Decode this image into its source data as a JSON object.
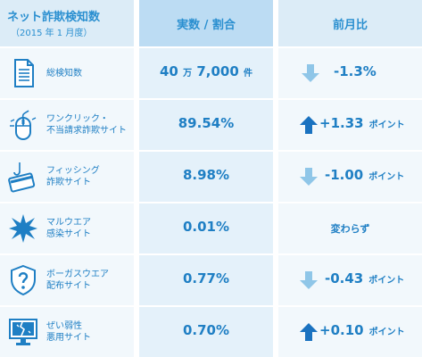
{
  "header": {
    "title": "ネット詐欺検知数",
    "subtitle": "（2015 年 1 月度）",
    "col2": "実数 / 割合",
    "col3": "前月比"
  },
  "rows": [
    {
      "label1": "総検知数",
      "label2": "",
      "value": "40",
      "value_unit1": "万",
      "value_num2": "7,000",
      "value_unit2": "件",
      "change": "-1.3%",
      "change_unit": "",
      "direction": "down",
      "icon": "document-icon"
    },
    {
      "label1": "ワンクリック・",
      "label2": "不当請求詐欺サイト",
      "value": "89.54%",
      "change": "+1.33",
      "change_unit": "ポイント",
      "direction": "up",
      "icon": "mouse-icon"
    },
    {
      "label1": "フィッシング",
      "label2": "詐欺サイト",
      "value": "8.98%",
      "change": "-1.00",
      "change_unit": "ポイント",
      "direction": "down",
      "icon": "credit-card-hook-icon"
    },
    {
      "label1": "マルウエア",
      "label2": "感染サイト",
      "value": "0.01%",
      "change": "変わらず",
      "change_unit": "",
      "direction": "none",
      "icon": "virus-icon"
    },
    {
      "label1": "ボーガスウエア",
      "label2": "配布サイト",
      "value": "0.77%",
      "change": "-0.43",
      "change_unit": "ポイント",
      "direction": "down",
      "icon": "shield-question-icon"
    },
    {
      "label1": "ぜい弱性",
      "label2": "悪用サイト",
      "value": "0.70%",
      "change": "+0.10",
      "change_unit": "ポイント",
      "direction": "up",
      "icon": "broken-monitor-icon"
    }
  ],
  "colors": {
    "text": "#1f7fc4",
    "arrow_up": "#1a72c0",
    "arrow_down": "#8fc6e8",
    "header_bg": "#dcecf7"
  }
}
